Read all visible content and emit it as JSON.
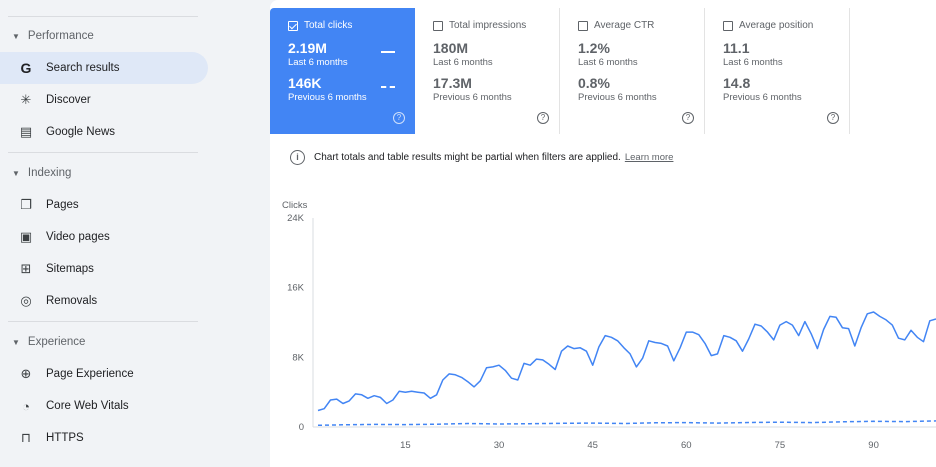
{
  "sidebar": {
    "sections": [
      {
        "title": "Performance",
        "items": [
          {
            "label": "Search results",
            "icon": "google-g-icon",
            "active": true
          },
          {
            "label": "Discover",
            "icon": "asterisk-icon"
          },
          {
            "label": "Google News",
            "icon": "news-icon"
          }
        ]
      },
      {
        "title": "Indexing",
        "items": [
          {
            "label": "Pages",
            "icon": "pages-icon"
          },
          {
            "label": "Video pages",
            "icon": "video-pages-icon"
          },
          {
            "label": "Sitemaps",
            "icon": "sitemap-icon"
          },
          {
            "label": "Removals",
            "icon": "eye-off-icon"
          }
        ]
      },
      {
        "title": "Experience",
        "items": [
          {
            "label": "Page Experience",
            "icon": "plus-circle-icon"
          },
          {
            "label": "Core Web Vitals",
            "icon": "gauge-icon"
          },
          {
            "label": "HTTPS",
            "icon": "lock-icon"
          }
        ]
      }
    ]
  },
  "metrics": [
    {
      "label": "Total clicks",
      "checked": true,
      "value1": "2.19M",
      "sub1": "Last 6 months",
      "value2": "146K",
      "sub2": "Previous 6 months"
    },
    {
      "label": "Total impressions",
      "checked": false,
      "value1": "180M",
      "sub1": "Last 6 months",
      "value2": "17.3M",
      "sub2": "Previous 6 months"
    },
    {
      "label": "Average CTR",
      "checked": false,
      "value1": "1.2%",
      "sub1": "Last 6 months",
      "value2": "0.8%",
      "sub2": "Previous 6 months"
    },
    {
      "label": "Average position",
      "checked": false,
      "value1": "11.1",
      "sub1": "Last 6 months",
      "value2": "14.8",
      "sub2": "Previous 6 months"
    }
  ],
  "info": {
    "icon": "info-icon",
    "text": "Chart totals and table results might be partial when filters are applied.",
    "link": "Learn more"
  },
  "colors": {
    "accent": "#4285f4",
    "line": "#4285f4"
  },
  "chart_data": {
    "type": "line",
    "ylabel": "Clicks",
    "ylim": [
      0,
      24000
    ],
    "yticks": [
      "24K",
      "16K",
      "8K",
      "0"
    ],
    "yticks_values": [
      24000,
      16000,
      8000,
      0
    ],
    "xticks": [
      15,
      30,
      45,
      60,
      75,
      90
    ],
    "xlim": [
      1,
      100
    ],
    "series": [
      {
        "style": "solid",
        "x": [
          1,
          2,
          3,
          4,
          5,
          6,
          7,
          8,
          9,
          10,
          11,
          12,
          13,
          14,
          15,
          16,
          17,
          18,
          19,
          20,
          21,
          22,
          23,
          24,
          25,
          26,
          27,
          28,
          29,
          30,
          31,
          32,
          33,
          34,
          35,
          36,
          37,
          38,
          39,
          40,
          41,
          42,
          43,
          44,
          45,
          46,
          47,
          48,
          49,
          50,
          51,
          52,
          53,
          54,
          55,
          56,
          57,
          58,
          59,
          60,
          61,
          62,
          63,
          64,
          65,
          66,
          67,
          68,
          69,
          70,
          71,
          72,
          73,
          74,
          75,
          76,
          77,
          78,
          79,
          80,
          81,
          82,
          83,
          84,
          85,
          86,
          87,
          88,
          89,
          90,
          91,
          92,
          93,
          94,
          95,
          96,
          97,
          98,
          99,
          100
        ],
        "values": [
          1900,
          2100,
          3100,
          3200,
          2700,
          3000,
          3800,
          3700,
          3300,
          3600,
          3400,
          2700,
          3100,
          4100,
          4000,
          4100,
          4000,
          3900,
          3300,
          3700,
          5400,
          6100,
          6000,
          5700,
          5200,
          4600,
          5300,
          6800,
          6900,
          7100,
          6500,
          5600,
          5400,
          7300,
          7100,
          7800,
          7700,
          7200,
          6600,
          8700,
          9300,
          9000,
          9100,
          8700,
          7100,
          9200,
          10500,
          10300,
          9900,
          9100,
          8400,
          6900,
          7900,
          9900,
          9700,
          9600,
          9300,
          7600,
          9100,
          10900,
          10900,
          10600,
          9600,
          8200,
          8400,
          10500,
          10300,
          9900,
          8700,
          10100,
          11800,
          11600,
          10900,
          10000,
          11700,
          12100,
          11700,
          10500,
          12100,
          10700,
          9000,
          11200,
          12700,
          12600,
          11400,
          11300,
          9300,
          11400,
          13000,
          13200,
          12700,
          12300,
          11700,
          10200,
          10000,
          11100,
          10300,
          9800,
          12200,
          12400
        ]
      },
      {
        "style": "dashed",
        "x": [
          1,
          5,
          10,
          15,
          20,
          25,
          30,
          35,
          40,
          45,
          50,
          55,
          60,
          65,
          70,
          75,
          80,
          85,
          90,
          95,
          100
        ],
        "values": [
          200,
          250,
          300,
          280,
          320,
          400,
          350,
          380,
          420,
          450,
          400,
          480,
          500,
          450,
          520,
          550,
          500,
          600,
          650,
          620,
          700
        ]
      }
    ]
  }
}
